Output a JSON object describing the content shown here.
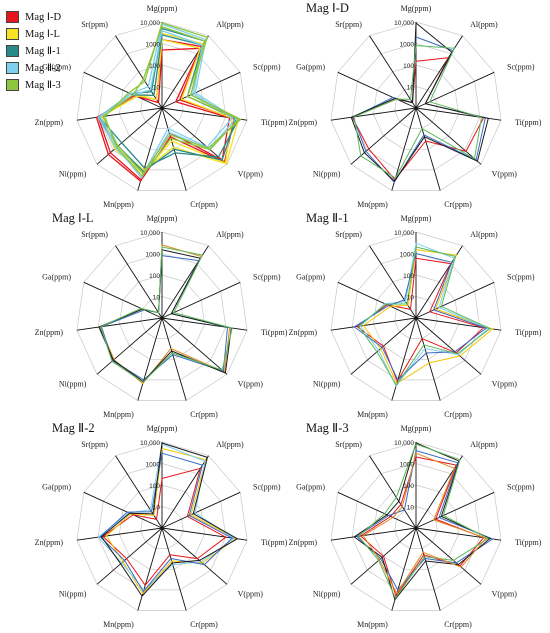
{
  "legend": [
    {
      "label": "Mag Ⅰ-D",
      "color": "#e8141c"
    },
    {
      "label": "Mag Ⅰ-L",
      "color": "#f5e225"
    },
    {
      "label": "Mag Ⅱ-1",
      "color": "#2a8a8a"
    },
    {
      "label": "Mag Ⅱ-2",
      "color": "#7fd0ee"
    },
    {
      "label": "Mag Ⅱ-3",
      "color": "#8ec63f"
    }
  ],
  "chart_data": [
    {
      "type": "radar",
      "scale": "log",
      "ylim": [
        1,
        10000
      ],
      "title": "",
      "axes": [
        "Mg(ppm)",
        "Al(ppm)",
        "Sc(ppm)",
        "Ti(ppm)",
        "V(ppm)",
        "Cr(ppm)",
        "Mn(ppm)",
        "Ni(ppm)",
        "Zn(ppm)",
        "Ga(ppm)",
        "Sr(ppm)"
      ],
      "tick_labels": [
        "10",
        "100",
        "1000",
        "10,000"
      ],
      "series": [
        {
          "group": 0,
          "color": "#e8141c",
          "values": [
            500,
            2000,
            5,
            1500,
            5000,
            15,
            3000,
            1500,
            1000,
            20,
            2
          ]
        },
        {
          "group": 0,
          "color": "#e8141c",
          "values": [
            1500,
            2500,
            8,
            2500,
            7000,
            25,
            3500,
            2000,
            1200,
            25,
            3
          ]
        },
        {
          "group": 1,
          "color": "#f5e225",
          "values": [
            1500,
            2000,
            10,
            2000,
            8000,
            40,
            1500,
            800,
            800,
            30,
            3
          ]
        },
        {
          "group": 1,
          "color": "#f5e225",
          "values": [
            3000,
            3500,
            20,
            4000,
            9000,
            80,
            1000,
            700,
            700,
            20,
            5
          ]
        },
        {
          "group": 2,
          "color": "#2a8a8a",
          "values": [
            2500,
            3000,
            20,
            3000,
            5000,
            100,
            1200,
            500,
            1000,
            30,
            5
          ]
        },
        {
          "group": 2,
          "color": "#2a8a8a",
          "values": [
            5000,
            5000,
            30,
            4000,
            3000,
            150,
            800,
            300,
            900,
            40,
            8
          ]
        },
        {
          "group": 3,
          "color": "#7fd0ee",
          "values": [
            4000,
            3000,
            40,
            2000,
            600,
            10,
            2000,
            700,
            1000,
            30,
            10
          ]
        },
        {
          "group": 3,
          "color": "#7fd0ee",
          "values": [
            8000,
            6000,
            50,
            3000,
            800,
            15,
            2500,
            600,
            800,
            40,
            15
          ]
        },
        {
          "group": 4,
          "color": "#8ec63f",
          "values": [
            6000,
            5000,
            30,
            5000,
            700,
            20,
            1500,
            500,
            600,
            30,
            40
          ]
        },
        {
          "group": 4,
          "color": "#8ec63f",
          "values": [
            9000,
            8000,
            20,
            4000,
            900,
            30,
            2000,
            600,
            500,
            50,
            30
          ]
        }
      ]
    },
    {
      "type": "radar",
      "scale": "log",
      "ylim": [
        1,
        10000
      ],
      "title": "Mag Ⅰ-D",
      "axes": [
        "Mg(ppm)",
        "Al(ppm)",
        "Sc(ppm)",
        "Ti(ppm)",
        "V(ppm)",
        "Cr(ppm)",
        "Mn(ppm)",
        "Ni(ppm)",
        "Zn(ppm)",
        "Ga(ppm)",
        "Sr(ppm)"
      ],
      "tick_labels": [
        "10",
        "100",
        "1000",
        "10,000"
      ],
      "series": [
        {
          "color": "#e8141c",
          "values": [
            150,
            600,
            3,
            1500,
            1200,
            40,
            3000,
            800,
            1000,
            10,
            2
          ]
        },
        {
          "color": "#3a6bc4",
          "values": [
            2000,
            1500,
            3,
            1800,
            5000,
            20,
            4000,
            1200,
            900,
            15,
            2
          ]
        },
        {
          "color": "#1a1a1a",
          "values": [
            9000,
            1200,
            3,
            2500,
            6000,
            25,
            3500,
            1500,
            1100,
            12,
            2
          ]
        },
        {
          "color": "#5cb85c",
          "values": [
            800,
            2000,
            5,
            1200,
            4000,
            10,
            2500,
            2500,
            800,
            10,
            3
          ]
        }
      ]
    },
    {
      "type": "radar",
      "scale": "log",
      "ylim": [
        1,
        10000
      ],
      "title": "Mag Ⅰ-L",
      "axes": [
        "Mg(ppm)",
        "Al(ppm)",
        "Sc(ppm)",
        "Ti(ppm)",
        "V(ppm)",
        "Cr(ppm)",
        "Mn(ppm)",
        "Ni(ppm)",
        "Zn(ppm)",
        "Ga(ppm)",
        "Sr(ppm)"
      ],
      "tick_labels": [
        "10",
        "100",
        "1000",
        "10,000"
      ],
      "series": [
        {
          "color": "#e08a1e",
          "values": [
            2500,
            2500,
            3,
            1500,
            7000,
            30,
            1500,
            900,
            800,
            10,
            2
          ]
        },
        {
          "color": "#3a6bc4",
          "values": [
            800,
            1500,
            3,
            1200,
            6000,
            60,
            1000,
            1100,
            700,
            8,
            2
          ]
        },
        {
          "color": "#1a1a1a",
          "values": [
            1500,
            2000,
            3,
            1800,
            8000,
            40,
            1200,
            1000,
            900,
            10,
            2
          ]
        },
        {
          "color": "#5cb85c",
          "values": [
            2000,
            3000,
            4,
            2000,
            5000,
            50,
            1300,
            1200,
            750,
            12,
            2
          ]
        }
      ]
    },
    {
      "type": "radar",
      "scale": "log",
      "ylim": [
        1,
        10000
      ],
      "title": "Mag Ⅱ-1",
      "axes": [
        "Mg(ppm)",
        "Al(ppm)",
        "Sc(ppm)",
        "Ti(ppm)",
        "V(ppm)",
        "Cr(ppm)",
        "Mn(ppm)",
        "Ni(ppm)",
        "Zn(ppm)",
        "Ga(ppm)",
        "Sr(ppm)"
      ],
      "tick_labels": [
        "10",
        "100",
        "1000",
        "10,000"
      ],
      "series": [
        {
          "color": "#e8141c",
          "values": [
            600,
            1000,
            5,
            1500,
            300,
            10,
            1200,
            100,
            600,
            30,
            3
          ]
        },
        {
          "color": "#f5c400",
          "values": [
            1500,
            3000,
            10,
            4000,
            500,
            150,
            1500,
            150,
            300,
            20,
            5
          ]
        },
        {
          "color": "#7fd0ee",
          "values": [
            3000,
            2000,
            15,
            2500,
            400,
            30,
            2000,
            200,
            400,
            40,
            8
          ]
        },
        {
          "color": "#3a6bc4",
          "values": [
            1000,
            1200,
            8,
            2000,
            250,
            50,
            1000,
            120,
            800,
            25,
            10
          ]
        },
        {
          "color": "#5cb85c",
          "values": [
            2000,
            2500,
            20,
            3000,
            350,
            20,
            1800,
            250,
            500,
            35,
            6
          ]
        }
      ]
    },
    {
      "type": "radar",
      "scale": "log",
      "ylim": [
        1,
        10000
      ],
      "title": "Mag Ⅱ-2",
      "axes": [
        "Mg(ppm)",
        "Al(ppm)",
        "Sc(ppm)",
        "Ti(ppm)",
        "V(ppm)",
        "Cr(ppm)",
        "Mn(ppm)",
        "Ni(ppm)",
        "Zn(ppm)",
        "Ga(ppm)",
        "Sr(ppm)"
      ],
      "tick_labels": [
        "10",
        "100",
        "1000",
        "10,000"
      ],
      "series": [
        {
          "color": "#e8141c",
          "values": [
            200,
            2000,
            20,
            1000,
            150,
            20,
            600,
            150,
            600,
            30,
            3
          ]
        },
        {
          "color": "#f5c400",
          "values": [
            5000,
            6000,
            30,
            3000,
            300,
            40,
            1500,
            250,
            400,
            40,
            5
          ]
        },
        {
          "color": "#7fd0ee",
          "values": [
            8000,
            5000,
            50,
            2500,
            250,
            60,
            1000,
            300,
            1000,
            50,
            10
          ]
        },
        {
          "color": "#3a6bc4",
          "values": [
            3000,
            3000,
            25,
            2000,
            400,
            30,
            1200,
            200,
            800,
            60,
            8
          ]
        },
        {
          "color": "#1a1a1a",
          "values": [
            9000,
            8000,
            40,
            3500,
            200,
            50,
            2000,
            350,
            700,
            45,
            6
          ]
        }
      ]
    },
    {
      "type": "radar",
      "scale": "log",
      "ylim": [
        1,
        10000
      ],
      "title": "Mag Ⅱ-3",
      "axes": [
        "Mg(ppm)",
        "Al(ppm)",
        "Sc(ppm)",
        "Ti(ppm)",
        "V(ppm)",
        "Cr(ppm)",
        "Mn(ppm)",
        "Ni(ppm)",
        "Zn(ppm)",
        "Ga(ppm)",
        "Sr(ppm)"
      ],
      "tick_labels": [
        "10",
        "100",
        "1000",
        "10,000"
      ],
      "series": [
        {
          "color": "#e8141c",
          "values": [
            2000,
            3000,
            10,
            1500,
            500,
            20,
            2000,
            100,
            400,
            20,
            20
          ]
        },
        {
          "color": "#3a6bc4",
          "values": [
            4000,
            4000,
            15,
            4000,
            300,
            30,
            1000,
            150,
            600,
            25,
            10
          ]
        },
        {
          "color": "#1a1a1a",
          "values": [
            9000,
            5000,
            20,
            3000,
            400,
            40,
            3000,
            120,
            800,
            30,
            30
          ]
        },
        {
          "color": "#5cb85c",
          "values": [
            8000,
            6000,
            25,
            2500,
            200,
            25,
            2500,
            200,
            500,
            40,
            50
          ]
        },
        {
          "color": "#e08a1e",
          "values": [
            3000,
            2000,
            8,
            2000,
            600,
            15,
            1500,
            180,
            300,
            15,
            15
          ]
        }
      ]
    }
  ]
}
